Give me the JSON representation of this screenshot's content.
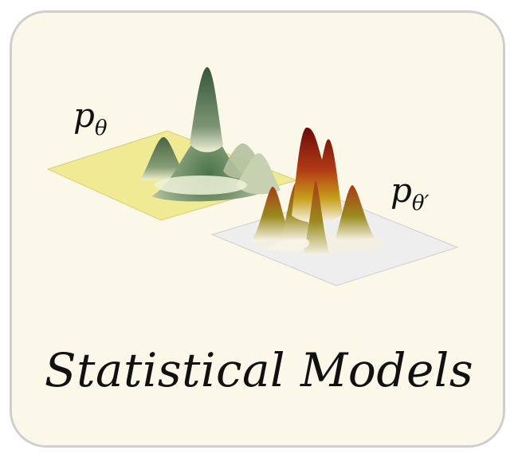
{
  "labels": {
    "model_a": "p",
    "model_a_sub": "θ",
    "model_b": "p",
    "model_b_sub": "θ′"
  },
  "caption": "Statistical Models",
  "colors": {
    "background": "#fbf8ea",
    "border": "#cfcfcf",
    "plane_a": "#f0ea95",
    "plane_b": "#eeeeee",
    "surface_a_peak": "#3f6a40",
    "surface_a_base": "#e9edd0",
    "surface_b_peak": "#7a0f10",
    "surface_b_mid": "#c79a1a",
    "surface_b_base": "#f6f2e6"
  }
}
